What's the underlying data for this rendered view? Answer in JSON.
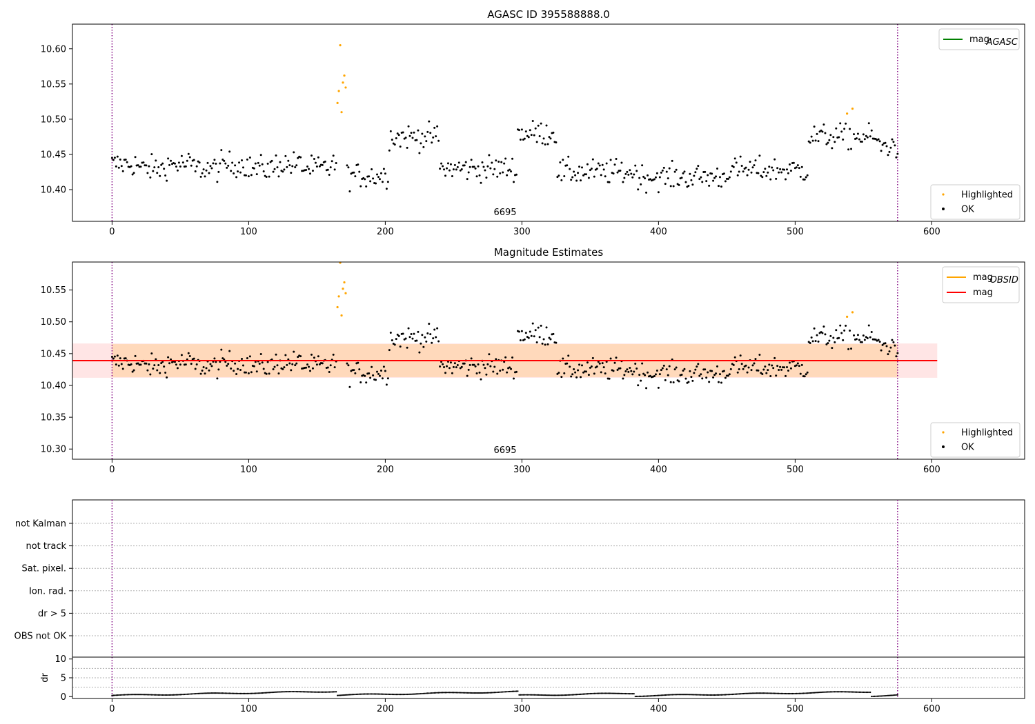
{
  "chart_data": [
    {
      "type": "scatter",
      "title": "AGASC ID 395588888.0",
      "obsid_label": "6695",
      "x_ticks": [
        0,
        100,
        200,
        300,
        400,
        500,
        600
      ],
      "xlim": [
        -29,
        668
      ],
      "y_ticks": [
        "10.40",
        "10.45",
        "10.50",
        "10.55",
        "10.60"
      ],
      "ylim": [
        10.355,
        10.635
      ],
      "vlines": [
        0,
        575
      ],
      "line_legend": [
        {
          "label": "mag",
          "subscript": "AGASC",
          "color": "#008000"
        }
      ],
      "marker_legend": [
        {
          "label": "Highlighted",
          "color": "#ffa500"
        },
        {
          "label": "OK",
          "color": "#000000"
        }
      ],
      "series": [
        {
          "name": "OK",
          "color": "#000000",
          "note": "observed samples, index 0-575"
        },
        {
          "name": "Highlighted",
          "color": "#ffa500",
          "x": [
            165,
            166,
            167,
            168,
            169,
            170,
            171,
            538,
            542
          ],
          "y": [
            10.523,
            10.54,
            10.605,
            10.51,
            10.552,
            10.562,
            10.545,
            10.508,
            10.515
          ]
        }
      ]
    },
    {
      "type": "scatter",
      "title": "Magnitude Estimates",
      "obsid_label": "6695",
      "x_ticks": [
        0,
        100,
        200,
        300,
        400,
        500,
        600
      ],
      "xlim": [
        -29,
        668
      ],
      "y_ticks": [
        "10.30",
        "10.35",
        "10.40",
        "10.45",
        "10.50",
        "10.55"
      ],
      "ylim": [
        10.284,
        10.594
      ],
      "vlines": [
        0,
        575
      ],
      "mag_line": 10.439,
      "mag_band": [
        10.412,
        10.466
      ],
      "obsid_band": [
        10.413,
        10.465
      ],
      "band_xlim": [
        -29,
        604
      ],
      "line_legend": [
        {
          "label": "mag",
          "subscript": "OBSID",
          "color": "#ffa500"
        },
        {
          "label": "mag",
          "subscript": "",
          "color": "#ff0000"
        }
      ],
      "marker_legend": [
        {
          "label": "Highlighted",
          "color": "#ffa500"
        },
        {
          "label": "OK",
          "color": "#000000"
        }
      ]
    },
    {
      "type": "scatter",
      "flag_labels": [
        "not Kalman",
        "not track",
        "Sat. pixel.",
        "Ion. rad.",
        "dr > 5",
        "OBS not OK"
      ],
      "vlines": [
        0,
        575
      ],
      "xlim": [
        -29,
        668
      ]
    },
    {
      "type": "line",
      "ylabel": "dr",
      "y_ticks": [
        "0",
        "5",
        "10"
      ],
      "ylim": [
        -0.5,
        10.5
      ],
      "x_ticks": [
        0,
        100,
        200,
        300,
        400,
        500,
        600
      ],
      "xlim": [
        -29,
        668
      ],
      "vlines": [
        0,
        575
      ]
    }
  ]
}
